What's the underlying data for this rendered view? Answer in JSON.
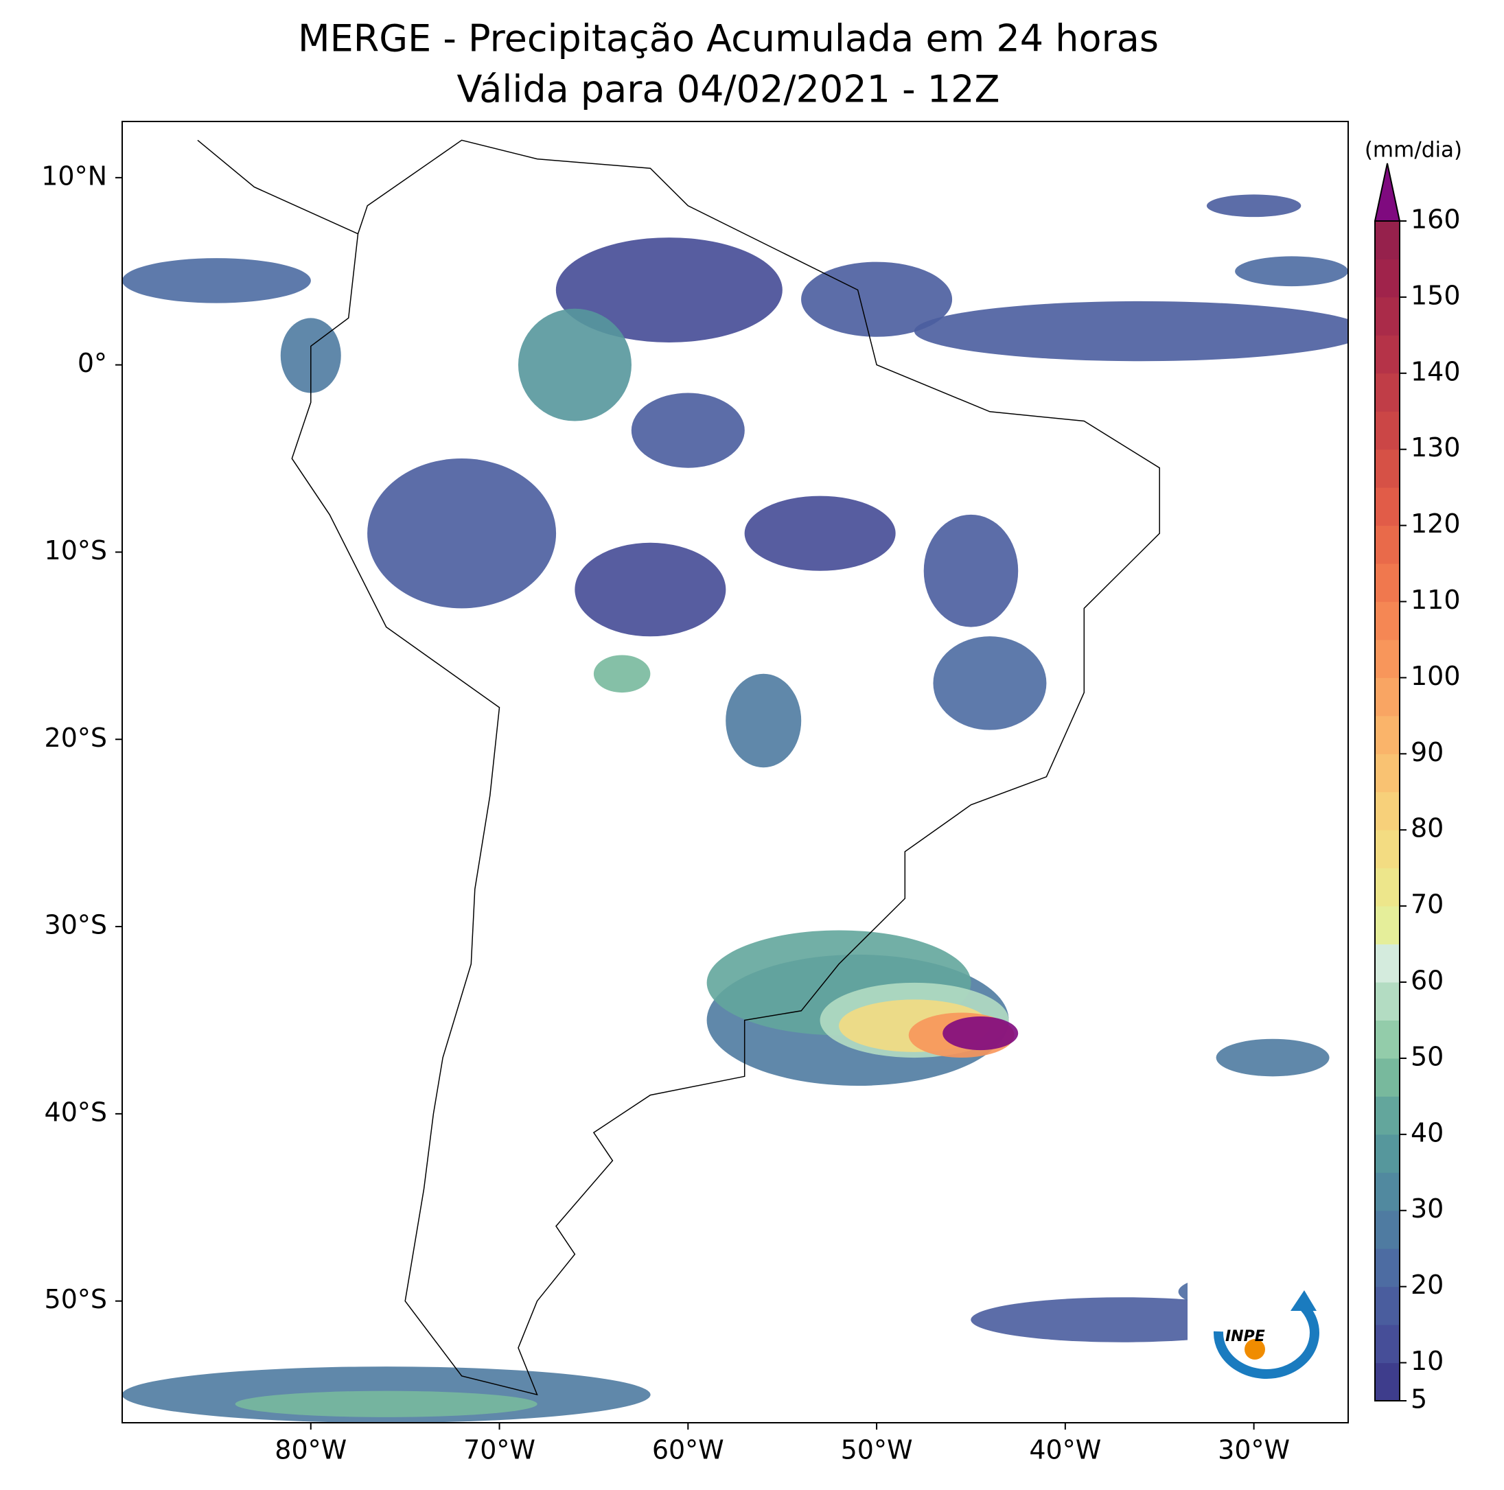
{
  "title": "MERGE - Precipitação Acumulada em 24 horas",
  "subtitle": "Válida para 04/02/2021 - 12Z",
  "map": {
    "lonlim": [
      -90,
      -25
    ],
    "latlim": [
      -56.5,
      13
    ],
    "xticks": [
      {
        "value": -80,
        "label": "80°W"
      },
      {
        "value": -70,
        "label": "70°W"
      },
      {
        "value": -60,
        "label": "60°W"
      },
      {
        "value": -50,
        "label": "50°W"
      },
      {
        "value": -40,
        "label": "40°W"
      },
      {
        "value": -30,
        "label": "30°W"
      }
    ],
    "yticks": [
      {
        "value": 10,
        "label": "10°N"
      },
      {
        "value": 0,
        "label": "0°"
      },
      {
        "value": -10,
        "label": "10°S"
      },
      {
        "value": -20,
        "label": "20°S"
      },
      {
        "value": -30,
        "label": "30°S"
      },
      {
        "value": -40,
        "label": "40°S"
      },
      {
        "value": -50,
        "label": "50°S"
      }
    ]
  },
  "colorbar": {
    "label": "(mm/dia)",
    "lim": [
      5,
      160
    ],
    "ticks": [
      5,
      10,
      20,
      30,
      40,
      50,
      60,
      70,
      80,
      90,
      100,
      110,
      120,
      130,
      140,
      150,
      160
    ],
    "colors": [
      "#3e3d8c",
      "#464e98",
      "#4a5d9e",
      "#4d6ca2",
      "#4f7ba1",
      "#51899f",
      "#56979c",
      "#63a69c",
      "#78b99d",
      "#93ccaa",
      "#b3dcc2",
      "#d4ebdd",
      "#e5ee9a",
      "#ede68b",
      "#f3dc82",
      "#f7d07a",
      "#f9c272",
      "#fab46a",
      "#f9a563",
      "#f8965b",
      "#f58754",
      "#f0784e",
      "#e96a4a",
      "#e15c48",
      "#d65146",
      "#cb4646",
      "#c03d47",
      "#b53348",
      "#aa2b49",
      "#a0234b",
      "#96214c"
    ],
    "extend_color": "#7f0a7f"
  },
  "logo": {
    "text": "INPE"
  }
}
